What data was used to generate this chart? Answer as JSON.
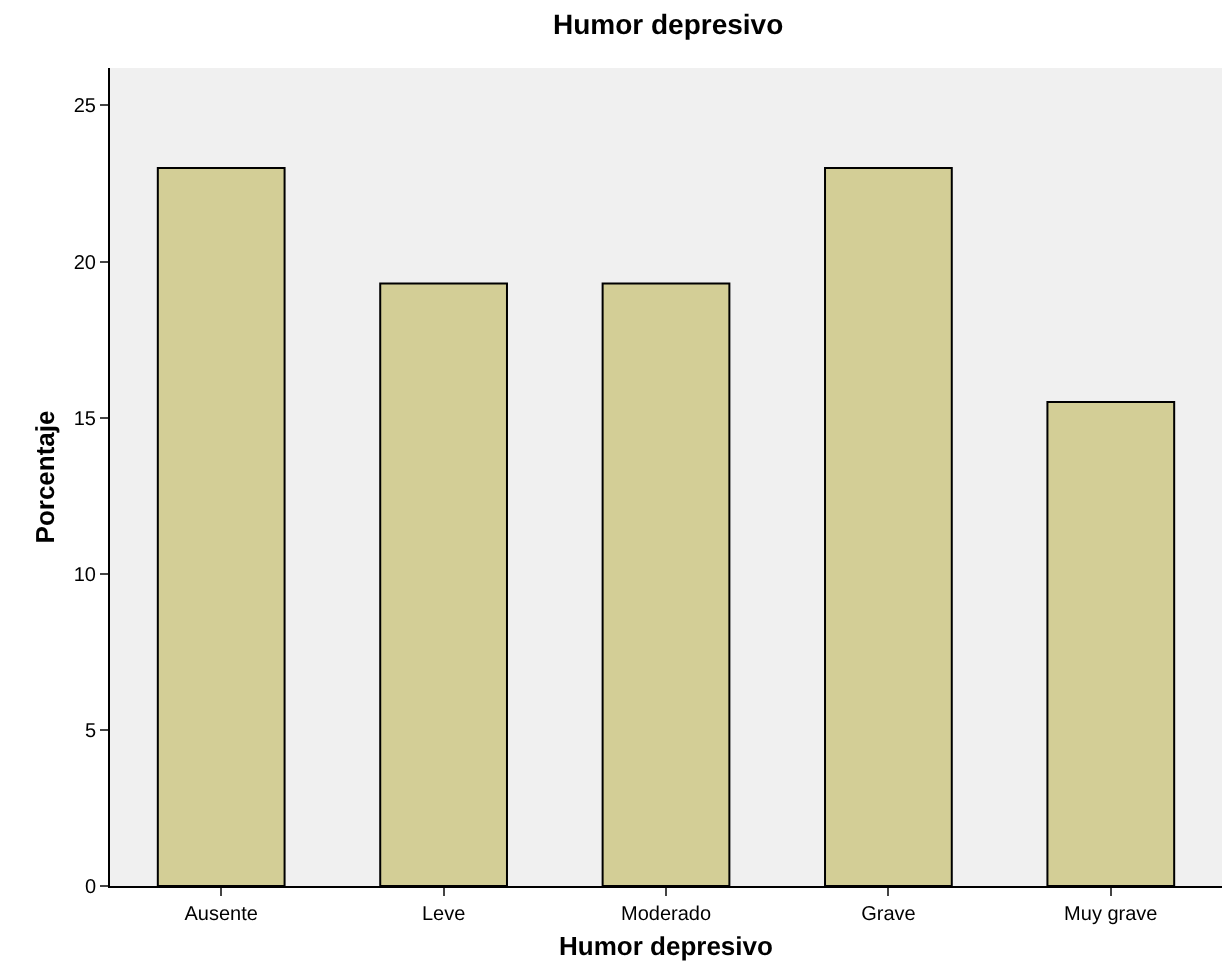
{
  "chart_data": {
    "type": "bar",
    "title": "Humor depresivo",
    "xlabel": "Humor depresivo",
    "ylabel": "Porcentaje",
    "categories": [
      "Ausente",
      "Leve",
      "Moderado",
      "Grave",
      "Muy grave"
    ],
    "values": [
      23.0,
      19.3,
      19.3,
      23.0,
      15.5
    ],
    "color": "#d3ce96",
    "ylim": [
      0,
      26.2
    ],
    "yticks": [
      0,
      5,
      10,
      15,
      20,
      25
    ],
    "grid": false,
    "legend": false
  }
}
